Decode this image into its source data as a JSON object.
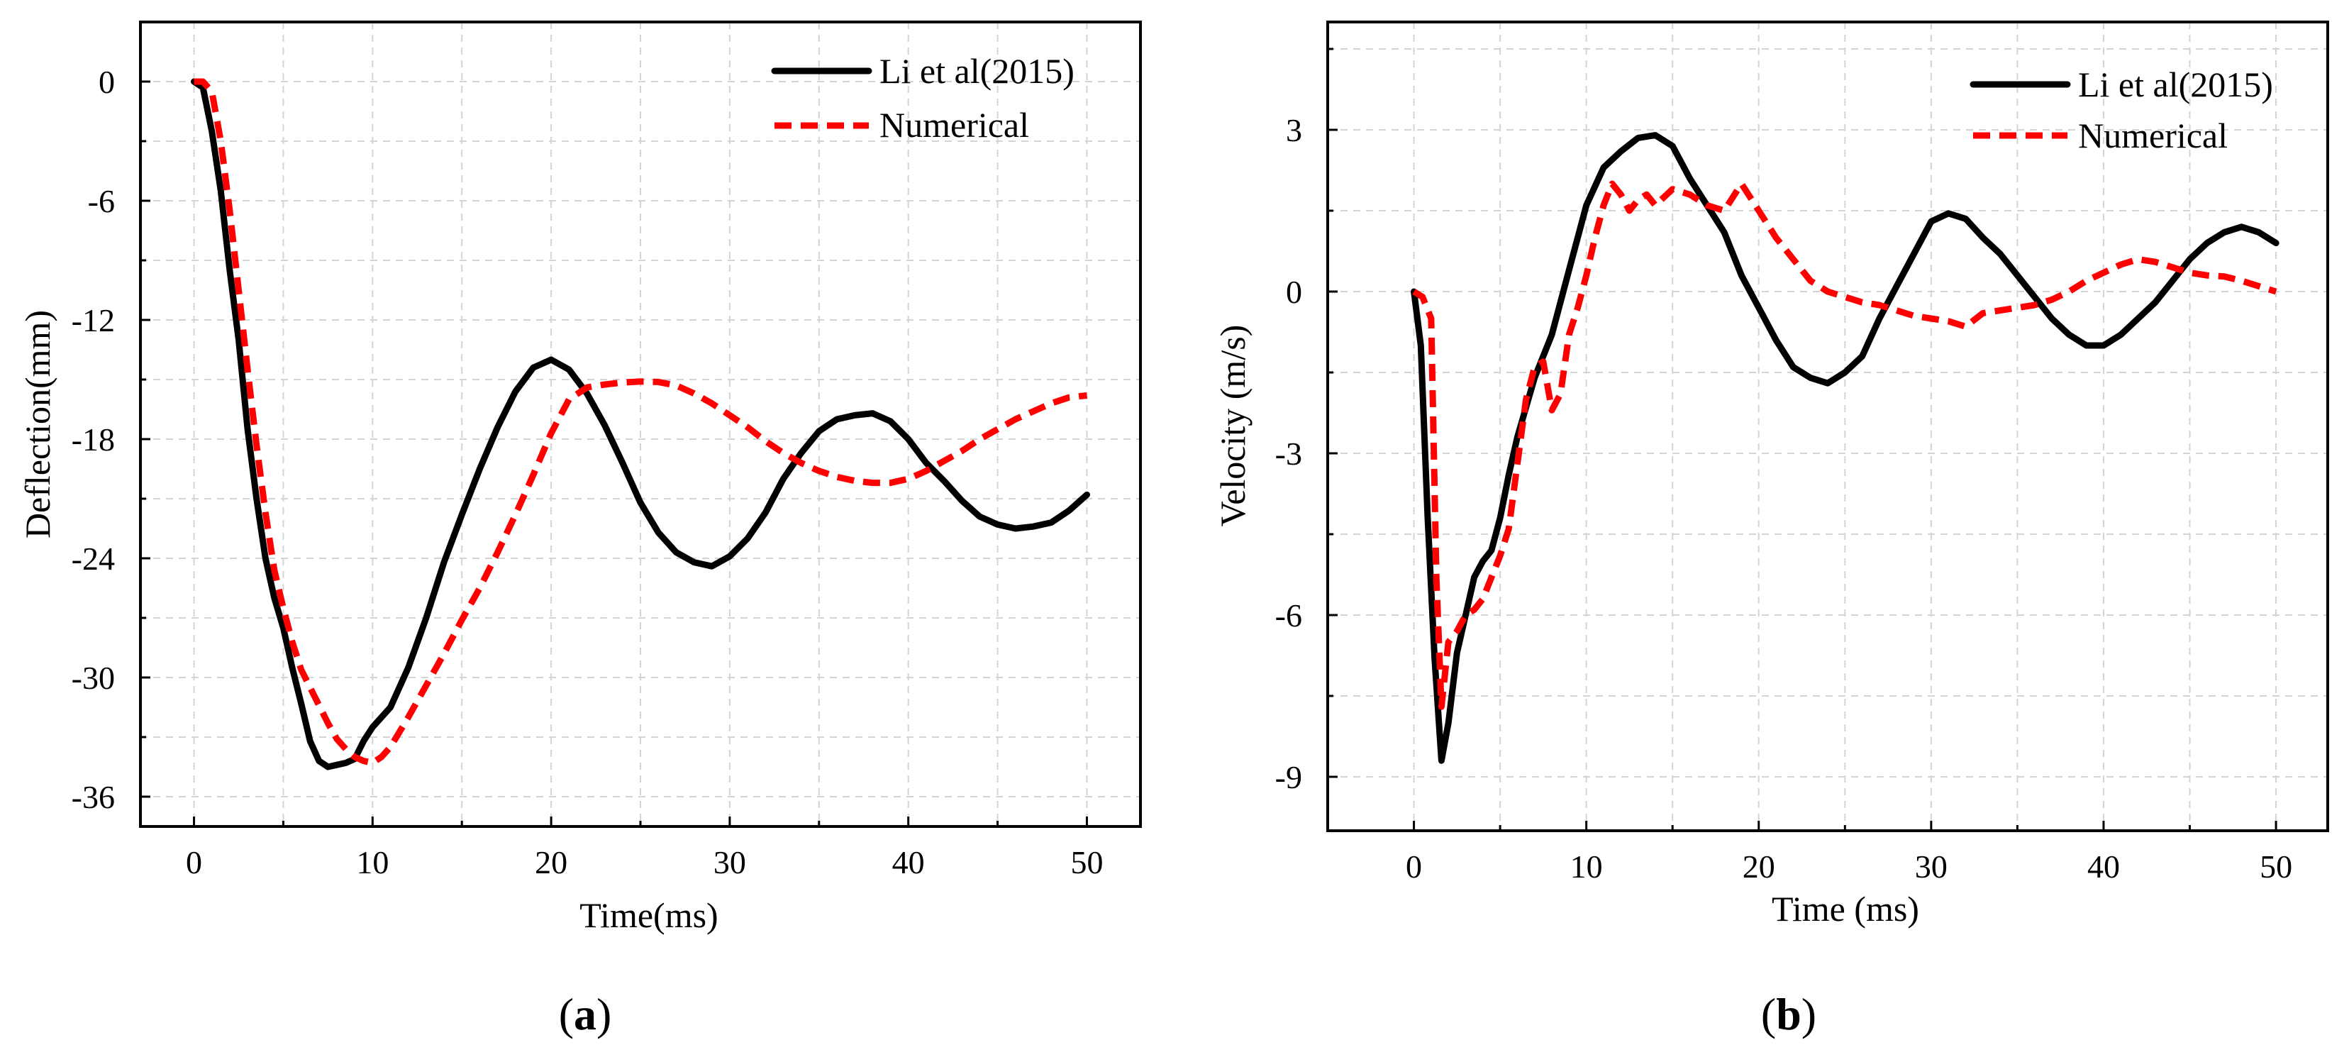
{
  "chart_data": [
    {
      "id": "a",
      "type": "line",
      "panel_label": "a",
      "xlabel": "Time(ms)",
      "ylabel": "Deflection(mm)",
      "xlim": [
        -3,
        53
      ],
      "ylim": [
        -37.5,
        3
      ],
      "xticks": [
        0,
        10,
        20,
        30,
        40,
        50
      ],
      "yticks": [
        0,
        -6,
        -12,
        -18,
        -24,
        -30,
        -36
      ],
      "xtick_labels": [
        "0",
        "10",
        "20",
        "30",
        "40",
        "50"
      ],
      "ytick_labels": [
        "0",
        "-6",
        "-12",
        "-18",
        "-24",
        "-30",
        "-36"
      ],
      "grid": true,
      "legend_position": "top-right",
      "series": [
        {
          "name": "Li et al(2015)",
          "color": "#000000",
          "style": "solid",
          "x": [
            0,
            0.5,
            1,
            1.5,
            2,
            2.5,
            3,
            3.5,
            4,
            4.5,
            5,
            5.5,
            6,
            6.5,
            7,
            7.5,
            8,
            8.5,
            9,
            9.5,
            10,
            11,
            12,
            13,
            14,
            15,
            16,
            17,
            18,
            19,
            20,
            21,
            22,
            23,
            24,
            25,
            26,
            27,
            28,
            29,
            30,
            31,
            32,
            33,
            34,
            35,
            36,
            37,
            38,
            39,
            40,
            41,
            42,
            43,
            44,
            45,
            46,
            47,
            48,
            49,
            50
          ],
          "y": [
            0,
            -0.3,
            -2.5,
            -5.5,
            -9.5,
            -13,
            -17.5,
            -21,
            -24,
            -26,
            -27.5,
            -29.5,
            -31.3,
            -33.2,
            -34.2,
            -34.5,
            -34.4,
            -34.3,
            -34.1,
            -33.2,
            -32.5,
            -31.5,
            -29.5,
            -27,
            -24.2,
            -21.8,
            -19.5,
            -17.4,
            -15.6,
            -14.4,
            -14,
            -14.5,
            -15.7,
            -17.3,
            -19.2,
            -21.2,
            -22.7,
            -23.7,
            -24.2,
            -24.4,
            -23.9,
            -23,
            -21.7,
            -20,
            -18.7,
            -17.6,
            -17,
            -16.8,
            -16.7,
            -17.1,
            -18,
            -19.2,
            -20.1,
            -21.1,
            -21.9,
            -22.3,
            -22.5,
            -22.4,
            -22.2,
            -21.6,
            -20.8
          ]
        },
        {
          "name": "Numerical",
          "color": "#ff0000",
          "style": "dashed",
          "x": [
            0,
            0.5,
            1,
            1.5,
            2,
            2.5,
            3,
            3.5,
            4,
            4.5,
            5,
            5.5,
            6,
            6.5,
            7,
            7.5,
            8,
            8.5,
            9,
            9.5,
            10,
            10.5,
            11,
            12,
            13,
            14,
            15,
            16,
            17,
            18,
            19,
            20,
            21,
            22,
            23,
            24,
            25,
            26,
            27,
            28,
            29,
            30,
            31,
            32,
            33,
            34,
            35,
            36,
            37,
            38,
            39,
            40,
            41,
            42,
            43,
            44,
            45,
            46,
            47,
            48,
            49,
            50
          ],
          "y": [
            0,
            0,
            -0.5,
            -3,
            -6.5,
            -10.5,
            -14.5,
            -18.3,
            -21.7,
            -24.6,
            -26.5,
            -28.2,
            -29.6,
            -30.5,
            -31.4,
            -32.3,
            -33.1,
            -33.6,
            -34,
            -34.2,
            -34.3,
            -34,
            -33.5,
            -32,
            -30.4,
            -28.8,
            -27.1,
            -25.5,
            -23.7,
            -21.8,
            -19.8,
            -17.7,
            -16,
            -15.4,
            -15.25,
            -15.15,
            -15.1,
            -15.12,
            -15.3,
            -15.7,
            -16.2,
            -16.8,
            -17.4,
            -18.1,
            -18.7,
            -19.2,
            -19.6,
            -19.9,
            -20.1,
            -20.2,
            -20.2,
            -20,
            -19.6,
            -19.1,
            -18.6,
            -18,
            -17.5,
            -17,
            -16.6,
            -16.2,
            -15.9,
            -15.8
          ]
        }
      ]
    },
    {
      "id": "b",
      "type": "line",
      "panel_label": "b",
      "xlabel": "Time (ms)",
      "ylabel": "Velocity (m/s)",
      "xlim": [
        -5,
        53
      ],
      "ylim": [
        -10,
        5
      ],
      "xticks": [
        0,
        10,
        20,
        30,
        40,
        50
      ],
      "yticks": [
        3,
        0,
        -3,
        -6,
        -9
      ],
      "xtick_labels": [
        "0",
        "10",
        "20",
        "30",
        "40",
        "50"
      ],
      "ytick_labels": [
        "3",
        "0",
        "-3",
        "-6",
        "-9"
      ],
      "grid": true,
      "legend_position": "top-right",
      "series": [
        {
          "name": "Li et al(2015)",
          "color": "#000000",
          "style": "solid",
          "x": [
            0,
            0.4,
            0.8,
            1.2,
            1.6,
            2,
            2.5,
            3,
            3.5,
            4,
            4.5,
            5,
            5.5,
            6,
            7,
            8,
            9,
            10,
            11,
            12,
            13,
            14,
            15,
            16,
            17,
            18,
            19,
            20,
            21,
            22,
            23,
            24,
            25,
            26,
            27,
            28,
            29,
            30,
            31,
            32,
            33,
            34,
            35,
            36,
            37,
            38,
            39,
            40,
            41,
            42,
            43,
            44,
            45,
            46,
            47,
            48,
            49,
            50
          ],
          "y": [
            0,
            -1,
            -4.2,
            -6.8,
            -8.7,
            -8,
            -6.7,
            -6,
            -5.3,
            -5,
            -4.8,
            -4.2,
            -3.4,
            -2.7,
            -1.6,
            -0.8,
            0.4,
            1.6,
            2.3,
            2.6,
            2.85,
            2.9,
            2.7,
            2.1,
            1.6,
            1.1,
            0.3,
            -0.3,
            -0.9,
            -1.4,
            -1.6,
            -1.7,
            -1.5,
            -1.2,
            -0.5,
            0.1,
            0.7,
            1.3,
            1.45,
            1.35,
            1,
            0.7,
            0.3,
            -0.1,
            -0.5,
            -0.8,
            -1,
            -1,
            -0.8,
            -0.5,
            -0.2,
            0.2,
            0.6,
            0.9,
            1.1,
            1.2,
            1.1,
            0.9
          ]
        },
        {
          "name": "Numerical",
          "color": "#ff0000",
          "style": "dashed",
          "x": [
            0,
            0.5,
            1,
            1.3,
            1.6,
            2,
            2.5,
            3,
            3.5,
            4,
            4.5,
            5,
            5.5,
            6,
            6.5,
            7,
            7.5,
            8,
            8.5,
            9,
            9.5,
            10,
            10.5,
            11,
            11.5,
            12,
            12.5,
            13,
            13.5,
            14,
            15,
            16,
            17,
            18,
            19,
            20,
            21,
            22,
            23,
            24,
            25,
            26,
            27,
            28,
            29,
            30,
            31,
            32,
            33,
            34,
            35,
            36,
            37,
            38,
            39,
            40,
            41,
            42,
            43,
            44,
            45,
            46,
            47,
            48,
            49,
            50
          ],
          "y": [
            0,
            -0.1,
            -0.5,
            -5.3,
            -7.7,
            -6.5,
            -6.3,
            -6,
            -5.9,
            -5.7,
            -5.3,
            -4.9,
            -4.4,
            -3.2,
            -2,
            -1.4,
            -1.3,
            -2.2,
            -1.9,
            -0.8,
            -0.3,
            0.3,
            1,
            1.6,
            2,
            1.8,
            1.5,
            1.7,
            1.8,
            1.6,
            1.9,
            1.8,
            1.6,
            1.5,
            2,
            1.5,
            1,
            0.6,
            0.2,
            0,
            -0.1,
            -0.2,
            -0.25,
            -0.35,
            -0.45,
            -0.5,
            -0.55,
            -0.65,
            -0.4,
            -0.35,
            -0.3,
            -0.25,
            -0.15,
            0,
            0.2,
            0.35,
            0.5,
            0.6,
            0.55,
            0.45,
            0.35,
            0.3,
            0.28,
            0.2,
            0.1,
            0
          ]
        }
      ]
    }
  ]
}
